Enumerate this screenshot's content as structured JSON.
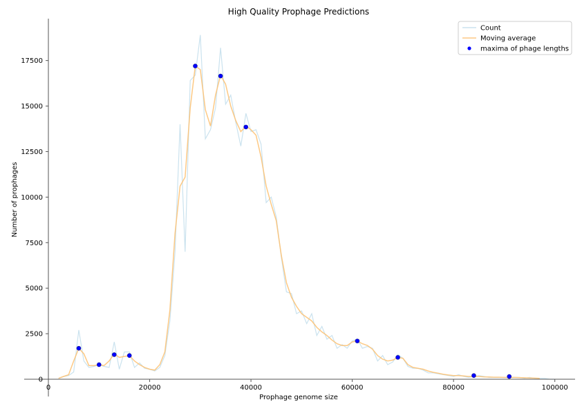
{
  "chart_data": {
    "type": "line",
    "title": "High Quality Prophage Predictions",
    "xlabel": "Prophage genome size",
    "ylabel": "Number of prophages",
    "xlim": [
      0,
      104000
    ],
    "ylim": [
      0,
      19800
    ],
    "x_ticks": [
      0,
      20000,
      40000,
      60000,
      80000,
      100000
    ],
    "y_ticks": [
      0,
      2500,
      5000,
      7500,
      10000,
      12500,
      15000,
      17500
    ],
    "legend_position": "top-right",
    "series": [
      {
        "name": "Count",
        "kind": "line",
        "color": "#a6cee3",
        "x": [
          2000,
          3000,
          4000,
          5000,
          6000,
          7000,
          8000,
          9000,
          10000,
          11000,
          12000,
          13000,
          14000,
          15000,
          16000,
          17000,
          18000,
          19000,
          20000,
          21000,
          22000,
          23000,
          24000,
          25000,
          26000,
          27000,
          28000,
          29000,
          30000,
          31000,
          32000,
          33000,
          34000,
          35000,
          36000,
          37000,
          38000,
          39000,
          40000,
          41000,
          42000,
          43000,
          44000,
          45000,
          46000,
          47000,
          48000,
          49000,
          50000,
          51000,
          52000,
          53000,
          54000,
          55000,
          56000,
          57000,
          58000,
          59000,
          60000,
          61000,
          62000,
          63000,
          64000,
          65000,
          66000,
          67000,
          68000,
          69000,
          70000,
          71000,
          72000,
          73000,
          74000,
          75000,
          76000,
          77000,
          78000,
          79000,
          80000,
          81000,
          82000,
          83000,
          84000,
          85000,
          86000,
          87000,
          88000,
          89000,
          90000,
          91000,
          92000,
          93000,
          94000,
          95000,
          96000,
          97000,
          98000,
          99000,
          100000
        ],
        "y": [
          50,
          150,
          200,
          400,
          2700,
          1000,
          650,
          700,
          800,
          700,
          650,
          2050,
          550,
          1500,
          1500,
          650,
          900,
          600,
          550,
          450,
          650,
          1300,
          3200,
          7000,
          14000,
          7000,
          16400,
          16700,
          18900,
          13200,
          13700,
          14900,
          18200,
          15100,
          15600,
          14100,
          12800,
          14600,
          13600,
          13700,
          12900,
          9700,
          10000,
          8900,
          6700,
          4800,
          4700,
          3600,
          3750,
          3050,
          3600,
          2400,
          2900,
          2200,
          2400,
          1700,
          1900,
          1700,
          2100,
          2200,
          1700,
          1800,
          1700,
          1000,
          1300,
          800,
          950,
          1350,
          1150,
          700,
          600,
          600,
          500,
          350,
          350,
          300,
          250,
          200,
          150,
          250,
          150,
          100,
          150,
          200,
          150,
          100,
          100,
          100,
          100,
          100,
          100,
          100,
          50,
          100,
          50,
          50,
          50,
          0,
          0
        ]
      },
      {
        "name": "Moving average",
        "kind": "line",
        "color": "#fdbf6f",
        "x": [
          2000,
          3000,
          4000,
          5000,
          6000,
          7000,
          8000,
          9000,
          10000,
          11000,
          12000,
          13000,
          14000,
          15000,
          16000,
          17000,
          18000,
          19000,
          20000,
          21000,
          22000,
          23000,
          24000,
          25000,
          26000,
          27000,
          28000,
          29000,
          30000,
          31000,
          32000,
          33000,
          34000,
          35000,
          36000,
          37000,
          38000,
          39000,
          40000,
          41000,
          42000,
          43000,
          44000,
          45000,
          46000,
          47000,
          48000,
          49000,
          50000,
          51000,
          52000,
          53000,
          54000,
          55000,
          56000,
          57000,
          58000,
          59000,
          60000,
          61000,
          62000,
          63000,
          64000,
          65000,
          66000,
          67000,
          68000,
          69000,
          70000,
          71000,
          72000,
          73000,
          74000,
          75000,
          76000,
          77000,
          78000,
          79000,
          80000,
          81000,
          82000,
          83000,
          84000,
          85000,
          86000,
          87000,
          88000,
          89000,
          90000,
          91000,
          92000,
          93000,
          94000,
          95000,
          96000,
          97000
        ],
        "y": [
          50,
          150,
          250,
          1000,
          1700,
          1400,
          750,
          750,
          800,
          750,
          1000,
          1400,
          1200,
          1250,
          1300,
          1000,
          800,
          650,
          550,
          500,
          800,
          1500,
          3800,
          8000,
          10600,
          11100,
          14900,
          17200,
          17000,
          14800,
          13900,
          15600,
          16700,
          16200,
          15000,
          14200,
          13600,
          13900,
          13700,
          13400,
          12200,
          10600,
          9600,
          8700,
          6800,
          5300,
          4500,
          4000,
          3600,
          3400,
          3200,
          2850,
          2600,
          2400,
          2150,
          1950,
          1850,
          1850,
          2050,
          2100,
          1950,
          1850,
          1650,
          1300,
          1100,
          1000,
          1050,
          1200,
          1150,
          800,
          650,
          600,
          550,
          450,
          380,
          330,
          270,
          230,
          200,
          200,
          180,
          150,
          150,
          150,
          130,
          120,
          110,
          110,
          100,
          100,
          100,
          90,
          80,
          70,
          60,
          50
        ]
      },
      {
        "name": "maxima of phage lengths",
        "kind": "scatter",
        "color": "#0000ff",
        "x": [
          6000,
          10000,
          13000,
          16000,
          29000,
          34000,
          39000,
          61000,
          69000,
          84000,
          91000
        ],
        "y": [
          1700,
          800,
          1350,
          1300,
          17200,
          16650,
          13850,
          2100,
          1200,
          200,
          150
        ]
      }
    ]
  }
}
